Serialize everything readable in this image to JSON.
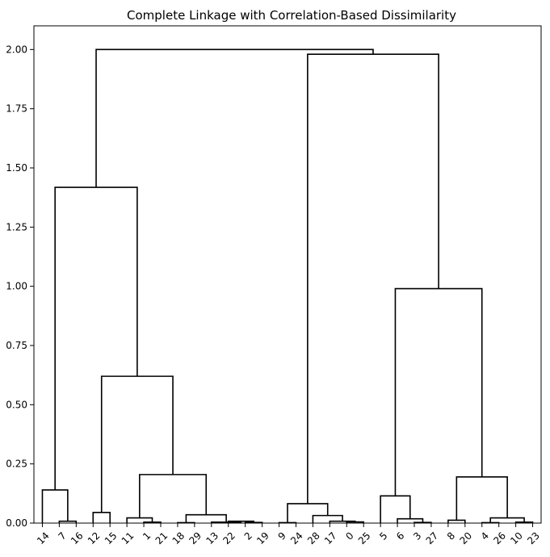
{
  "chart_data": {
    "type": "dendrogram",
    "title": "Complete Linkage with Correlation-Based Dissimilarity",
    "xlabel": "",
    "ylabel": "",
    "ylim": [
      0,
      2.1
    ],
    "y_ticks": [
      0.0,
      0.25,
      0.5,
      0.75,
      1.0,
      1.25,
      1.5,
      1.75,
      2.0
    ],
    "y_tick_labels": [
      "0.00",
      "0.25",
      "0.50",
      "0.75",
      "1.00",
      "1.25",
      "1.50",
      "1.75",
      "2.00"
    ],
    "leaves": [
      "14",
      "7",
      "16",
      "12",
      "15",
      "11",
      "1",
      "21",
      "18",
      "29",
      "13",
      "22",
      "2",
      "19",
      "9",
      "24",
      "28",
      "17",
      "0",
      "25",
      "5",
      "6",
      "3",
      "27",
      "8",
      "20",
      "4",
      "26",
      "10",
      "23"
    ],
    "merges": [
      {
        "a": "L:1",
        "b": "L:2",
        "height": 0.008
      },
      {
        "a": "L:0",
        "b": "M:0",
        "height": 0.14
      },
      {
        "a": "L:3",
        "b": "L:4",
        "height": 0.045
      },
      {
        "a": "L:6",
        "b": "L:7",
        "height": 0.004
      },
      {
        "a": "L:5",
        "b": "M:3",
        "height": 0.022
      },
      {
        "a": "L:8",
        "b": "L:9",
        "height": 0.002
      },
      {
        "a": "L:12",
        "b": "L:13",
        "height": 0.003
      },
      {
        "a": "L:11",
        "b": "M:6",
        "height": 0.008
      },
      {
        "a": "L:10",
        "b": "M:7",
        "height": 0.004
      },
      {
        "a": "M:5",
        "b": "M:8",
        "height": 0.035
      },
      {
        "a": "M:4",
        "b": "M:9",
        "height": 0.205
      },
      {
        "a": "M:2",
        "b": "M:10",
        "height": 0.62
      },
      {
        "a": "M:1",
        "b": "M:11",
        "height": 1.418
      },
      {
        "a": "L:14",
        "b": "L:15",
        "height": 0.002
      },
      {
        "a": "L:18",
        "b": "L:19",
        "height": 0.005
      },
      {
        "a": "L:17",
        "b": "M:14",
        "height": 0.008
      },
      {
        "a": "L:16",
        "b": "M:15",
        "height": 0.032
      },
      {
        "a": "M:13",
        "b": "M:16",
        "height": 0.082
      },
      {
        "a": "L:22",
        "b": "L:23",
        "height": 0.003
      },
      {
        "a": "L:21",
        "b": "M:18",
        "height": 0.018
      },
      {
        "a": "L:20",
        "b": "M:19",
        "height": 0.115
      },
      {
        "a": "L:24",
        "b": "L:25",
        "height": 0.012
      },
      {
        "a": "L:26",
        "b": "L:27",
        "height": 0.002
      },
      {
        "a": "L:28",
        "b": "L:29",
        "height": 0.004
      },
      {
        "a": "M:22",
        "b": "M:23",
        "height": 0.022
      },
      {
        "a": "M:21",
        "b": "M:24",
        "height": 0.195
      },
      {
        "a": "M:20",
        "b": "M:25",
        "height": 0.99
      },
      {
        "a": "M:17",
        "b": "M:26",
        "height": 1.98
      },
      {
        "a": "M:12",
        "b": "M:27",
        "height": 2.0
      }
    ]
  }
}
